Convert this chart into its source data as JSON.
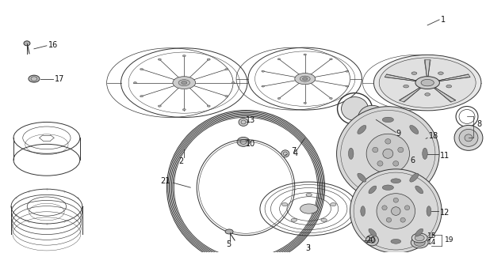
{
  "bg_color": "#ffffff",
  "line_color": "#333333",
  "label_color": "#111111",
  "lw": 0.6,
  "figsize": [
    6.13,
    3.2
  ],
  "dpi": 100
}
